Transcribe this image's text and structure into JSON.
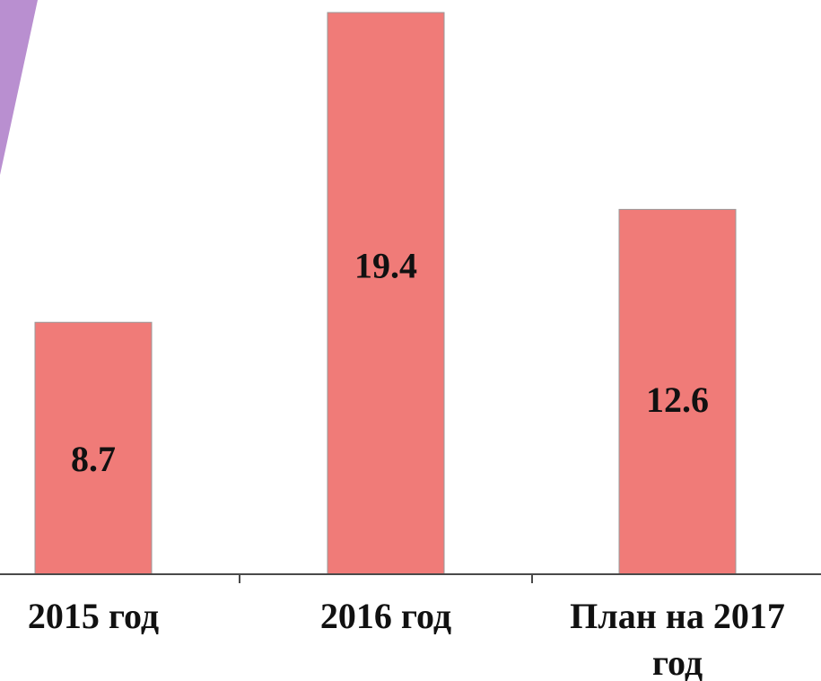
{
  "chart_data": {
    "type": "bar",
    "categories": [
      "2015 год",
      "2016 год",
      "План на 2017 год"
    ],
    "values": [
      8.7,
      19.4,
      12.6
    ],
    "title": "",
    "xlabel": "",
    "ylabel": "",
    "bar_color": "#f07b78",
    "bar_edge_color": "#9a9a9a",
    "accent_shape_color": "#b98fd0"
  }
}
